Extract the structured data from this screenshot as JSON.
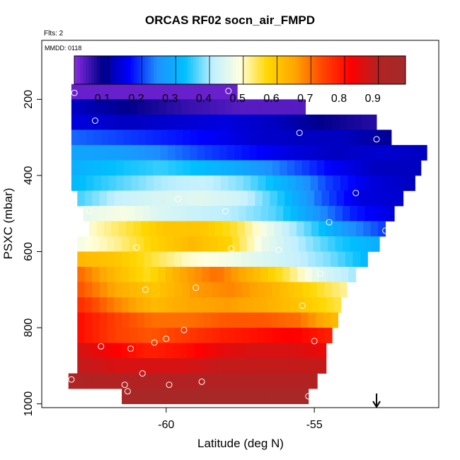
{
  "chart_data": {
    "type": "heatmap",
    "title": "ORCAS RF02 socn_air_FMPD",
    "flights_note": "Flts: 2",
    "date_note": "MMDD: 0118",
    "xlabel": "Latitude (deg N)",
    "ylabel": "PSXC (mbar)",
    "xlim": [
      -64.2,
      -50.8
    ],
    "ylim": [
      1010,
      45
    ],
    "x_ticks": [
      -60,
      -55
    ],
    "y_ticks": [
      200,
      400,
      600,
      800,
      1000
    ],
    "colorbar": {
      "range": [
        0,
        0.98
      ],
      "ticks": [
        0.1,
        0.2,
        0.3,
        0.4,
        0.5,
        0.6,
        0.7,
        0.8,
        0.9
      ],
      "colors": [
        "#8a2be2",
        "#00008b",
        "#0000ff",
        "#1e90ff",
        "#00bfff",
        "#bfefff",
        "#ffffe0",
        "#ffd700",
        "#ffa500",
        "#ff4500",
        "#ff0000",
        "#b22222",
        "#a52a2a"
      ]
    },
    "cell_size": {
      "dlat": 0.25,
      "dp": 40
    },
    "rows": [
      {
        "p": 180,
        "lat_range": [
          -63.2,
          -57.6
        ],
        "values": [
          0.02,
          0.02
        ]
      },
      {
        "p": 220,
        "lat_range": [
          -63.2,
          -55.3
        ],
        "values": [
          0.12,
          0.08,
          0.05,
          0.03,
          0.03
        ]
      },
      {
        "p": 260,
        "lat_range": [
          -63.2,
          -52.9
        ],
        "values": [
          0.14,
          0.12,
          0.13,
          0.14,
          0.12,
          0.08,
          0.06
        ]
      },
      {
        "p": 300,
        "lat_range": [
          -63.2,
          -52.4
        ],
        "values": [
          0.22,
          0.2,
          0.18,
          0.16,
          0.13,
          0.12,
          0.12,
          0.09
        ]
      },
      {
        "p": 340,
        "lat_range": [
          -63.2,
          -51.2
        ],
        "values": [
          0.28,
          0.27,
          0.24,
          0.2,
          0.17,
          0.14,
          0.12,
          0.13,
          0.12
        ]
      },
      {
        "p": 380,
        "lat_range": [
          -63.2,
          -51.4
        ],
        "values": [
          0.3,
          0.33,
          0.35,
          0.32,
          0.28,
          0.22,
          0.16,
          0.12,
          0.12
        ]
      },
      {
        "p": 420,
        "lat_range": [
          -63.2,
          -51.6
        ],
        "values": [
          0.32,
          0.36,
          0.4,
          0.42,
          0.38,
          0.3,
          0.2,
          0.14,
          0.12
        ]
      },
      {
        "p": 460,
        "lat_range": [
          -63.0,
          -52.0
        ],
        "values": [
          0.36,
          0.42,
          0.44,
          0.45,
          0.43,
          0.34,
          0.22,
          0.14,
          0.13
        ]
      },
      {
        "p": 500,
        "lat_range": [
          -62.8,
          -52.3
        ],
        "values": [
          0.46,
          0.48,
          0.44,
          0.42,
          0.4,
          0.36,
          0.26,
          0.18,
          0.14
        ]
      },
      {
        "p": 540,
        "lat_range": [
          -62.6,
          -52.6
        ],
        "values": [
          0.5,
          0.55,
          0.6,
          0.6,
          0.55,
          0.45,
          0.36,
          0.26,
          0.2
        ]
      },
      {
        "p": 580,
        "lat_range": [
          -63.0,
          -52.8
        ],
        "values": [
          0.48,
          0.52,
          0.58,
          0.62,
          0.58,
          0.46,
          0.4,
          0.34,
          0.3
        ]
      },
      {
        "p": 620,
        "lat_range": [
          -63.0,
          -53.2
        ],
        "values": [
          0.62,
          0.6,
          0.55,
          0.5,
          0.48,
          0.45,
          0.42,
          0.38,
          0.32
        ]
      },
      {
        "p": 660,
        "lat_range": [
          -63.0,
          -53.6
        ],
        "values": [
          0.7,
          0.62,
          0.56,
          0.65,
          0.7,
          0.63,
          0.55,
          0.45,
          0.4
        ]
      },
      {
        "p": 700,
        "lat_range": [
          -63.0,
          -53.9
        ],
        "values": [
          0.72,
          0.64,
          0.6,
          0.66,
          0.68,
          0.64,
          0.58,
          0.52
        ]
      },
      {
        "p": 740,
        "lat_range": [
          -63.0,
          -54.1
        ],
        "values": [
          0.76,
          0.68,
          0.62,
          0.65,
          0.66,
          0.64,
          0.6,
          0.55
        ]
      },
      {
        "p": 780,
        "lat_range": [
          -63.0,
          -54.2
        ],
        "values": [
          0.8,
          0.74,
          0.7,
          0.7,
          0.72,
          0.72,
          0.7,
          0.62
        ]
      },
      {
        "p": 820,
        "lat_range": [
          -63.0,
          -54.4
        ],
        "values": [
          0.8,
          0.74,
          0.72,
          0.75,
          0.78,
          0.8,
          0.82,
          0.78
        ]
      },
      {
        "p": 860,
        "lat_range": [
          -63.0,
          -54.6
        ],
        "values": [
          0.86,
          0.82,
          0.78,
          0.8,
          0.84,
          0.86,
          0.86,
          0.84
        ]
      },
      {
        "p": 900,
        "lat_range": [
          -63.0,
          -54.6
        ],
        "values": [
          0.88,
          0.86,
          0.86,
          0.86,
          0.88,
          0.88,
          0.88,
          0.88
        ]
      },
      {
        "p": 940,
        "lat_range": [
          -63.3,
          -54.9
        ],
        "values": [
          0.92,
          0.9,
          0.9,
          0.9,
          0.9,
          0.9,
          0.9,
          0.9
        ]
      },
      {
        "p": 980,
        "lat_range": [
          -61.5,
          -55.2
        ],
        "values": [
          0.96,
          0.96,
          0.96
        ]
      }
    ],
    "points": [
      [
        -63.1,
        183
      ],
      [
        -57.9,
        178
      ],
      [
        -62.4,
        256
      ],
      [
        -55.5,
        288
      ],
      [
        -52.9,
        305
      ],
      [
        -51.2,
        386
      ],
      [
        -53.6,
        446
      ],
      [
        -52.6,
        545
      ],
      [
        -59.6,
        462
      ],
      [
        -58.0,
        494
      ],
      [
        -62.6,
        493
      ],
      [
        -54.5,
        523
      ],
      [
        -61.0,
        589
      ],
      [
        -57.8,
        592
      ],
      [
        -56.2,
        596
      ],
      [
        -54.8,
        658
      ],
      [
        -60.7,
        700
      ],
      [
        -59.0,
        695
      ],
      [
        -55.4,
        742
      ],
      [
        -62.2,
        849
      ],
      [
        -61.2,
        855
      ],
      [
        -60.4,
        839
      ],
      [
        -60.0,
        829
      ],
      [
        -59.4,
        806
      ],
      [
        -55.0,
        835
      ],
      [
        -63.2,
        936
      ],
      [
        -60.8,
        920
      ],
      [
        -61.4,
        950
      ],
      [
        -59.9,
        950
      ],
      [
        -58.8,
        942
      ],
      [
        -61.3,
        967
      ],
      [
        -55.2,
        980
      ]
    ],
    "arrow": {
      "lat": -52.9,
      "label": "↓"
    }
  }
}
